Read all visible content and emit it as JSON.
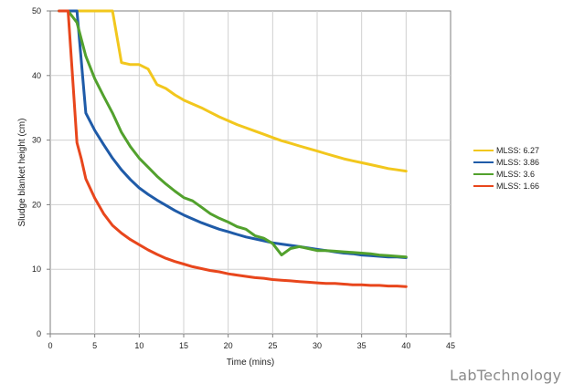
{
  "chart_data": {
    "type": "line",
    "xlabel": "Time (mins)",
    "ylabel": "Sludge blanket height (cm)",
    "xlim": [
      0,
      45
    ],
    "ylim": [
      0,
      50
    ],
    "xticks": [
      0,
      5,
      10,
      15,
      20,
      25,
      30,
      35,
      40,
      45
    ],
    "yticks": [
      0,
      10,
      20,
      30,
      40,
      50
    ],
    "grid": true,
    "legend_position": "right",
    "series": [
      {
        "name": "MLSS: 6.27",
        "color": "#f2c71d",
        "x": [
          1,
          2,
          3,
          4,
          5,
          6,
          7,
          8,
          9,
          10,
          11,
          12,
          13,
          14,
          15,
          16,
          17,
          18,
          19,
          20,
          21,
          22,
          23,
          24,
          25,
          26,
          27,
          28,
          29,
          30,
          31,
          32,
          33,
          34,
          35,
          36,
          37,
          38,
          39,
          40
        ],
        "values": [
          50,
          50,
          50,
          50,
          50,
          50,
          50,
          42,
          41.7,
          41.7,
          41,
          38.6,
          38,
          37,
          36.2,
          35.6,
          35,
          34.3,
          33.6,
          33,
          32.4,
          31.9,
          31.4,
          30.9,
          30.4,
          29.9,
          29.5,
          29.1,
          28.7,
          28.3,
          27.9,
          27.5,
          27.1,
          26.8,
          26.5,
          26.2,
          25.9,
          25.6,
          25.4,
          25.2
        ]
      },
      {
        "name": "MLSS: 3.86",
        "color": "#1f5ba8",
        "x": [
          1,
          2,
          3,
          4,
          5,
          6,
          7,
          8,
          9,
          10,
          11,
          12,
          13,
          14,
          15,
          16,
          17,
          18,
          19,
          20,
          21,
          22,
          23,
          24,
          25,
          26,
          27,
          28,
          29,
          30,
          31,
          32,
          33,
          34,
          35,
          36,
          37,
          38,
          39,
          40
        ],
        "values": [
          50,
          50,
          50,
          34.2,
          31.5,
          29.3,
          27.2,
          25.4,
          23.9,
          22.6,
          21.6,
          20.7,
          19.9,
          19.1,
          18.4,
          17.8,
          17.2,
          16.7,
          16.2,
          15.8,
          15.4,
          15.0,
          14.7,
          14.4,
          14.1,
          13.9,
          13.7,
          13.5,
          13.3,
          13.1,
          12.9,
          12.7,
          12.5,
          12.4,
          12.2,
          12.1,
          12.0,
          11.9,
          11.9,
          11.8
        ]
      },
      {
        "name": "MLSS: 3.6",
        "color": "#52a12d",
        "x": [
          1,
          2,
          3,
          4,
          5,
          6,
          7,
          8,
          9,
          10,
          11,
          12,
          13,
          14,
          15,
          16,
          17,
          18,
          19,
          20,
          21,
          22,
          23,
          24,
          25,
          26,
          27,
          28,
          29,
          30,
          31,
          32,
          33,
          34,
          35,
          36,
          37,
          38,
          39,
          40
        ],
        "values": [
          50,
          50,
          48.2,
          43,
          39.5,
          36.8,
          34.2,
          31.2,
          29,
          27.2,
          25.8,
          24.4,
          23.2,
          22.1,
          21.1,
          20.6,
          19.6,
          18.6,
          17.9,
          17.3,
          16.6,
          16.2,
          15.2,
          14.8,
          14.0,
          12.2,
          13.2,
          13.5,
          13.2,
          12.9,
          12.9,
          12.8,
          12.7,
          12.6,
          12.5,
          12.4,
          12.2,
          12.1,
          12.0,
          11.9
        ]
      },
      {
        "name": "MLSS: 1.66",
        "color": "#e8461c",
        "x": [
          1,
          2,
          2.5,
          3,
          3.5,
          4,
          5,
          6,
          7,
          8,
          9,
          10,
          11,
          12,
          13,
          14,
          15,
          16,
          17,
          18,
          19,
          20,
          21,
          22,
          23,
          24,
          25,
          26,
          27,
          28,
          29,
          30,
          31,
          32,
          33,
          34,
          35,
          36,
          37,
          38,
          39,
          40
        ],
        "values": [
          50,
          50,
          40,
          29.6,
          27,
          24,
          21,
          18.6,
          16.8,
          15.6,
          14.6,
          13.8,
          13.0,
          12.3,
          11.7,
          11.2,
          10.8,
          10.4,
          10.1,
          9.8,
          9.6,
          9.3,
          9.1,
          8.9,
          8.7,
          8.6,
          8.4,
          8.3,
          8.2,
          8.1,
          8.0,
          7.9,
          7.8,
          7.8,
          7.7,
          7.6,
          7.6,
          7.5,
          7.5,
          7.4,
          7.4,
          7.3
        ]
      }
    ]
  },
  "watermark_text": "LabTechnology"
}
